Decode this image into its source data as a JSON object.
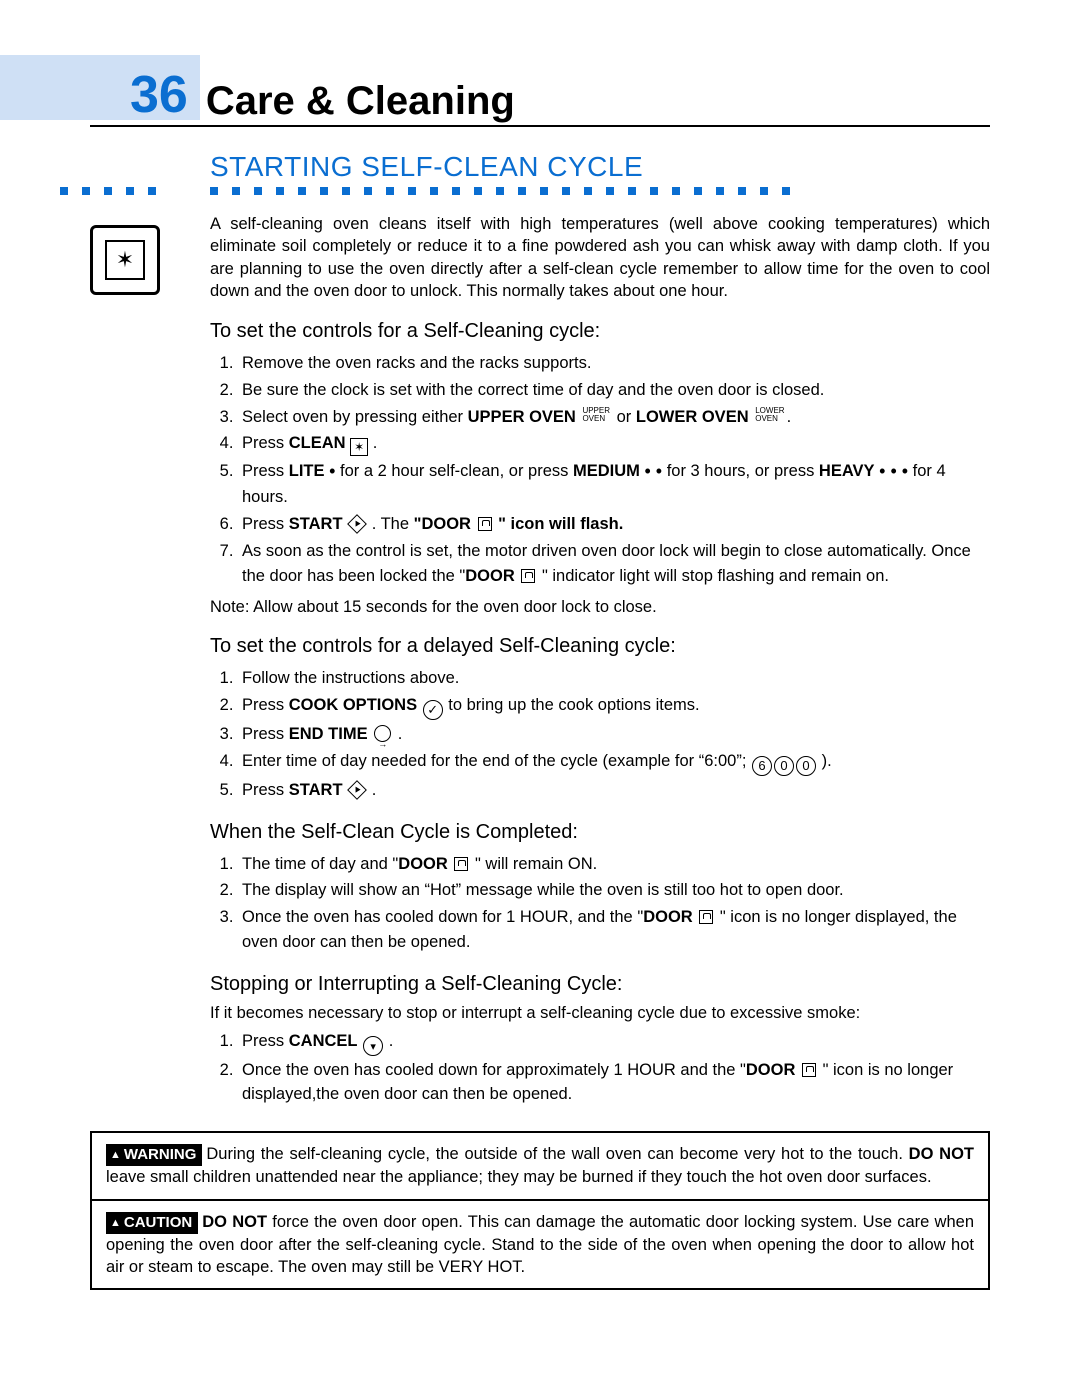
{
  "page_number": "36",
  "page_title": "Care & Cleaning",
  "section_heading": "STARTING SELF-CLEAN CYCLE",
  "colors": {
    "accent": "#0a6ed1",
    "band": "#cfe0f5",
    "text": "#000000",
    "background": "#ffffff"
  },
  "intro": "A self-cleaning oven cleans itself with high temperatures (well above cooking temperatures) which eliminate soil completely or reduce it to a fine powdered ash you can whisk away with damp cloth. If you are planning to use the oven directly after a self-clean cycle remember to allow time for the oven to cool down and the oven door to unlock.  This normally takes about one hour.",
  "sub1_heading": "To set the controls for a Self-Cleaning cycle:",
  "sub1_steps": {
    "s1": "Remove the oven racks and the racks supports.",
    "s2": "Be sure the clock is set with the correct time of day and the oven door is closed.",
    "s3a": "Select oven by pressing either ",
    "s3_upper": "UPPER OVEN",
    "s3b": " or ",
    "s3_lower": "LOWER OVEN",
    "s3c": ".",
    "s4a": "Press ",
    "s4_clean": "CLEAN",
    "s4b": " .",
    "s5a": "Press ",
    "s5_lite": "LITE",
    "s5b": " for a 2 hour self-clean, or press ",
    "s5_medium": "MEDIUM",
    "s5c": " for 3 hours, or press ",
    "s5_heavy": "HEAVY",
    "s5d": " for 4 hours.",
    "s6a": "Press ",
    "s6_start": "START",
    "s6b": " . The ",
    "s6_door": "\"DOOR",
    "s6c": " \" icon will flash.",
    "s7a": "As soon as the control is set, the motor driven oven door lock will begin to close automatically. Once the door has been locked the \"",
    "s7_door": "DOOR",
    "s7b": " \" indicator light will stop flashing and remain on."
  },
  "sub1_note": "Note: Allow about 15 seconds for the oven door lock to close.",
  "sub2_heading": "To set the controls for a delayed Self-Cleaning cycle:",
  "sub2_steps": {
    "s1": "Follow the instructions above.",
    "s2a": "Press ",
    "s2_cook": "COOK OPTIONS",
    "s2b": "  to bring up the cook options items.",
    "s3a": "Press ",
    "s3_end": "END TIME",
    "s3b": " .",
    "s4a": "Enter time of day needed for the end of the cycle (example for “6:00”; ",
    "s4b": " ).",
    "s5a": "Press ",
    "s5_start": "START",
    "s5b": " ."
  },
  "sub3_heading": "When the Self-Clean Cycle is Completed:",
  "sub3_steps": {
    "s1a": "The time of day and \"",
    "s1_door": "DOOR",
    "s1b": " \" will remain ON.",
    "s2": "The display will show an “Hot” message while the oven is still too hot to open door.",
    "s3a": "Once the oven has cooled down for 1 HOUR, and the \"",
    "s3_door": "DOOR",
    "s3b": " \" icon is no longer displayed, the oven door can then be opened."
  },
  "sub4_heading": "Stopping or Interrupting a Self-Cleaning Cycle:",
  "sub4_intro": "If it becomes necessary to stop or interrupt a self-cleaning cycle due to excessive smoke:",
  "sub4_steps": {
    "s1a": "Press ",
    "s1_cancel": "CANCEL",
    "s1b": " .",
    "s2a": "Once the oven has cooled down for approximately 1 HOUR and the \"",
    "s2_door": "DOOR",
    "s2b": " \" icon is no longer displayed,the oven door can then be opened."
  },
  "warning": {
    "badge": "WARNING",
    "text_a": "During the self-cleaning cycle, the outside of the wall oven can become very hot to the touch. ",
    "text_b": "DO NOT",
    "text_c": " leave small children unattended near the appliance; they may be burned if they touch the hot oven door surfaces."
  },
  "caution": {
    "badge": "CAUTION",
    "text_a": "DO NOT",
    "text_b": " force the oven door open. This can damage the automatic door locking system. Use care when opening the oven door after the self-cleaning cycle. Stand to the side of the oven when opening the door to allow hot air or steam to escape.  The oven may still be VERY HOT."
  },
  "digits": {
    "d6": "6",
    "d0a": "0",
    "d0b": "0"
  },
  "stacks": {
    "upper_top": "UPPER",
    "upper_bot": "OVEN",
    "lower_top": "LOWER",
    "lower_bot": "OVEN"
  }
}
